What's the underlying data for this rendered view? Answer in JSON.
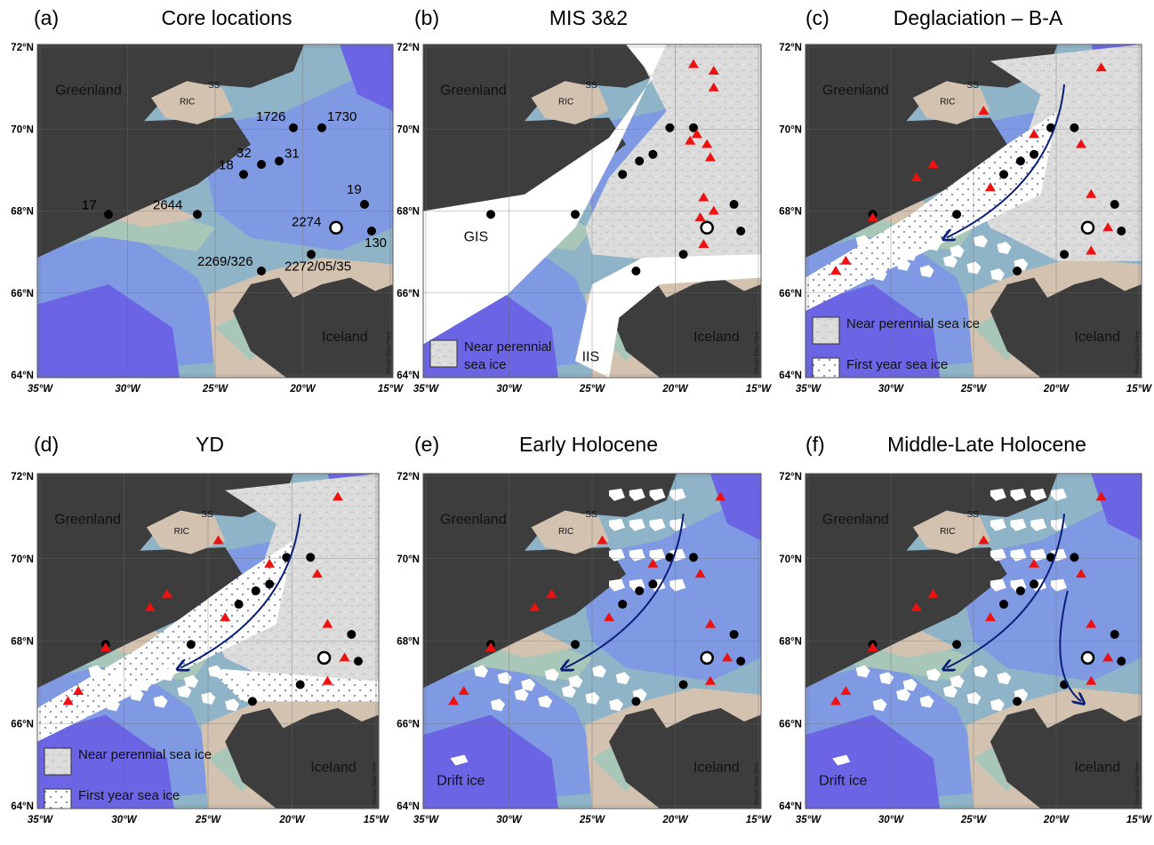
{
  "panels": [
    {
      "id": "a",
      "letter": "(a)",
      "title": "Core locations",
      "places": [
        "Greenland",
        "RIC",
        "SS",
        "Iceland"
      ],
      "core_labels": [
        "1726",
        "1730",
        "32",
        "31",
        "18",
        "17",
        "2644",
        "19",
        "2274",
        "130",
        "2269/326",
        "2272/05/35"
      ],
      "legend": []
    },
    {
      "id": "b",
      "letter": "(b)",
      "title": "MIS 3&2",
      "places": [
        "Greenland",
        "RIC",
        "SS",
        "GIS",
        "IIS",
        "Iceland"
      ],
      "legend": [
        "Near perennial\nsea ice"
      ]
    },
    {
      "id": "c",
      "letter": "(c)",
      "title": "Deglaciation – B-A",
      "places": [
        "Greenland",
        "RIC",
        "SS",
        "Iceland"
      ],
      "legend": [
        "Near perennial sea ice",
        "First year sea ice"
      ]
    },
    {
      "id": "d",
      "letter": "(d)",
      "title": "YD",
      "places": [
        "Greenland",
        "RIC",
        "SS",
        "Iceland"
      ],
      "legend": [
        "Near perennial sea ice",
        "First year sea ice"
      ]
    },
    {
      "id": "e",
      "letter": "(e)",
      "title": "Early Holocene",
      "places": [
        "Greenland",
        "RIC",
        "SS",
        "Iceland",
        "Drift ice"
      ],
      "legend": []
    },
    {
      "id": "f",
      "letter": "(f)",
      "title": "Middle-Late Holocene",
      "places": [
        "Greenland",
        "RIC",
        "SS",
        "Iceland",
        "Drift ice"
      ],
      "legend": []
    }
  ],
  "axes": {
    "lat_labels": [
      "72°N",
      "70°N",
      "68°N",
      "66°N",
      "64°N"
    ],
    "lon_labels": [
      "35°W",
      "30°W",
      "25°W",
      "20°W",
      "15°W"
    ]
  },
  "watermark": "Ocean Data View",
  "colors": {
    "land": "#3d3d3d",
    "shelf": "#d3c2b0",
    "shallow": "#a9c7b8",
    "mid": "#8fb3c7",
    "deep": "#7f9ae2",
    "deepest": "#6b65e6",
    "ice_perennial": "#dadada",
    "red_triangle": "#ee1111",
    "arrow": "#0b1f7a"
  }
}
